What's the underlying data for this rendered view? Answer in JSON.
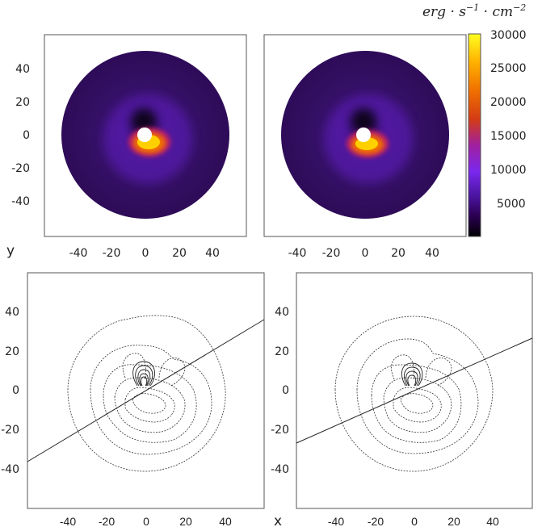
{
  "chart_data": [
    {
      "type": "heatmap",
      "panel": "top-left",
      "xlim": [
        -60,
        60
      ],
      "ylim": [
        -60,
        60
      ],
      "xticks": [
        -40,
        -20,
        0,
        20,
        40
      ],
      "yticks": [
        40,
        20,
        0,
        -20,
        -40
      ],
      "disk": {
        "inner_radius": 4,
        "outer_radius": 50
      },
      "hotspot": {
        "angle_deg": 270,
        "spread": 0.3,
        "center_x": 2,
        "center_y": -4
      }
    },
    {
      "type": "heatmap",
      "panel": "top-right",
      "xlim": [
        -60,
        60
      ],
      "ylim": [
        -60,
        60
      ],
      "xticks": [
        -40,
        -20,
        0,
        20,
        40
      ],
      "yticks": [],
      "disk": {
        "inner_radius": 4,
        "outer_radius": 50
      },
      "hotspot": {
        "angle_deg": 265,
        "spread": 0.3,
        "center_x": 0,
        "center_y": -4
      }
    },
    {
      "type": "contour",
      "panel": "bottom-left",
      "xlim": [
        -60,
        60
      ],
      "ylim": [
        -60,
        60
      ],
      "xticks": [
        -40,
        -20,
        0,
        20,
        40
      ],
      "yticks": [
        40,
        20,
        0,
        -20,
        -40
      ],
      "line": {
        "x": [
          -60,
          60
        ],
        "y": [
          -37,
          36
        ]
      },
      "outer_contour_radius": 40
    },
    {
      "type": "contour",
      "panel": "bottom-right",
      "xlim": [
        -60,
        60
      ],
      "ylim": [
        -60,
        60
      ],
      "xticks": [
        -40,
        -20,
        0,
        20,
        40
      ],
      "yticks": [
        40,
        20,
        0,
        -20,
        -40
      ],
      "line": {
        "x": [
          -60,
          60
        ],
        "y": [
          -27,
          27
        ]
      },
      "outer_contour_radius": 40
    }
  ],
  "colorbar": {
    "label": "erg · s⁻¹ · cm⁻²",
    "label_parts": {
      "base1": "erg · s",
      "exp1": "−1",
      "base2": " · cm",
      "exp2": "−2"
    },
    "range": [
      0,
      30000
    ],
    "ticks": [
      30000,
      25000,
      20000,
      15000,
      10000,
      5000
    ],
    "colors": [
      "#000000",
      "#2a0050",
      "#4b14a0",
      "#7a28ee",
      "#a020a0",
      "#d43c14",
      "#f07000",
      "#ffb000",
      "#ffff20"
    ]
  },
  "labels": {
    "y": "y",
    "x": "x"
  }
}
